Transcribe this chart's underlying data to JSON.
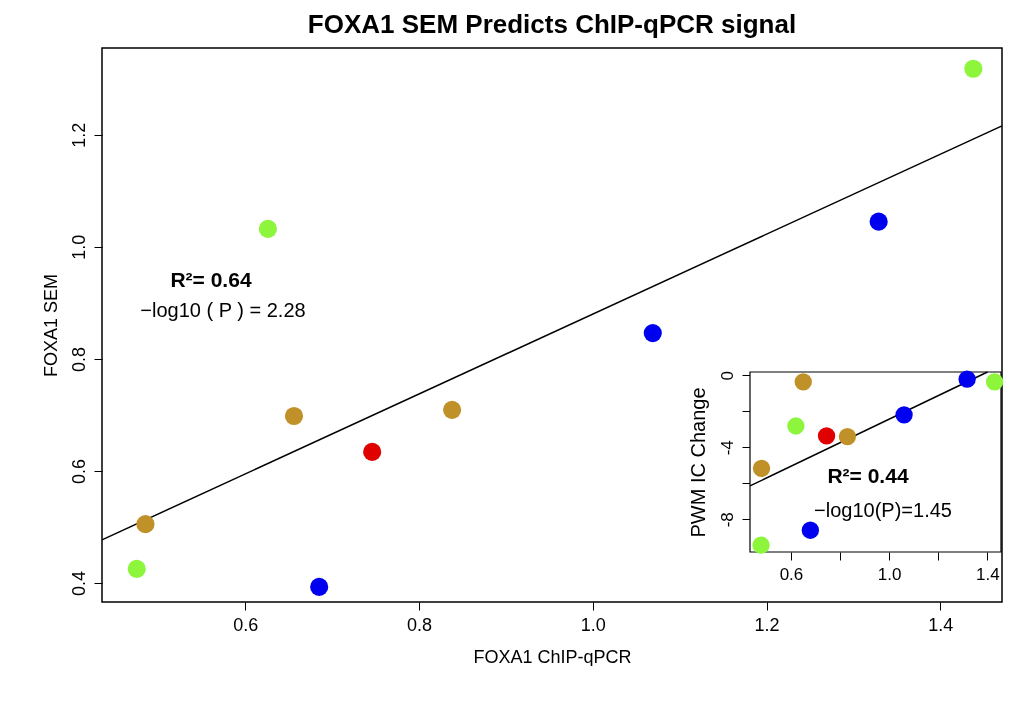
{
  "chart_data": [
    {
      "type": "scatter",
      "title": "FOXA1 SEM Predicts ChIP-qPCR signal",
      "xlabel": "FOXA1 ChIP-qPCR",
      "ylabel": "FOXA1 SEM",
      "xlim": [
        0.435,
        1.471
      ],
      "ylim": [
        0.366,
        1.355
      ],
      "xticks": [
        0.6,
        0.8,
        {
          "value": 1,
          "label": "1.0"
        },
        1.2,
        1.4
      ],
      "yticks": [
        0.4,
        0.6,
        0.8,
        {
          "value": 1,
          "label": "1.0"
        },
        1.2
      ],
      "grid": false,
      "annotations": [
        "R²= 0.64",
        "−log10 ( P ) = 2.28"
      ],
      "series": [
        {
          "type": "scatter",
          "marker": "circle",
          "x": [
            0.475,
            0.485,
            0.626,
            0.656,
            0.685,
            0.746,
            0.838,
            1.069,
            1.329,
            1.438
          ],
          "values": [
            0.425,
            0.505,
            1.032,
            0.698,
            0.393,
            0.634,
            0.709,
            0.846,
            1.045,
            1.318
          ],
          "colors": [
            "#8cf53c",
            "#bf9128",
            "#8cf53c",
            "#bf9128",
            "#0000f0",
            "#e00000",
            "#bf9128",
            "#0000f0",
            "#0000f0",
            "#8cf53c"
          ]
        },
        {
          "type": "line",
          "x": [
            0.435,
            1.471
          ],
          "values": [
            0.477,
            1.216
          ],
          "color": "#000000"
        }
      ]
    },
    {
      "type": "scatter",
      "ylabel": "PWM IC Change",
      "xlim": [
        0.433,
        1.456
      ],
      "ylim": [
        -9.82,
        0.18
      ],
      "xticks": [
        0.6,
        {
          "value": 0.8,
          "label": null
        },
        {
          "value": 1,
          "label": "1.0"
        },
        {
          "value": 1.2,
          "label": null
        },
        1.4
      ],
      "yticks": [
        {
          "value": -8,
          "label": "-8"
        },
        {
          "value": -6,
          "label": null
        },
        {
          "value": -4,
          "label": "-4"
        },
        {
          "value": -2,
          "label": null
        },
        0
      ],
      "grid": false,
      "annotations": [
        "R²= 0.44",
        "−log10(P)=1.45"
      ],
      "series": [
        {
          "type": "scatter",
          "marker": "circle",
          "x": [
            0.478,
            0.48,
            0.62,
            0.65,
            0.679,
            0.745,
            0.83,
            1.061,
            1.318,
            1.43
          ],
          "values": [
            -9.44,
            -5.17,
            -2.82,
            -0.37,
            -8.61,
            -3.37,
            -3.41,
            -2.2,
            -0.22,
            -0.37
          ],
          "colors": [
            "#8cf53c",
            "#bf9128",
            "#8cf53c",
            "#bf9128",
            "#0000f0",
            "#e00000",
            "#bf9128",
            "#0000f0",
            "#0000f0",
            "#8cf53c"
          ]
        },
        {
          "type": "line",
          "x": [
            0.433,
            1.401
          ],
          "values": [
            -6.15,
            0.18
          ],
          "color": "#000000"
        }
      ]
    }
  ]
}
